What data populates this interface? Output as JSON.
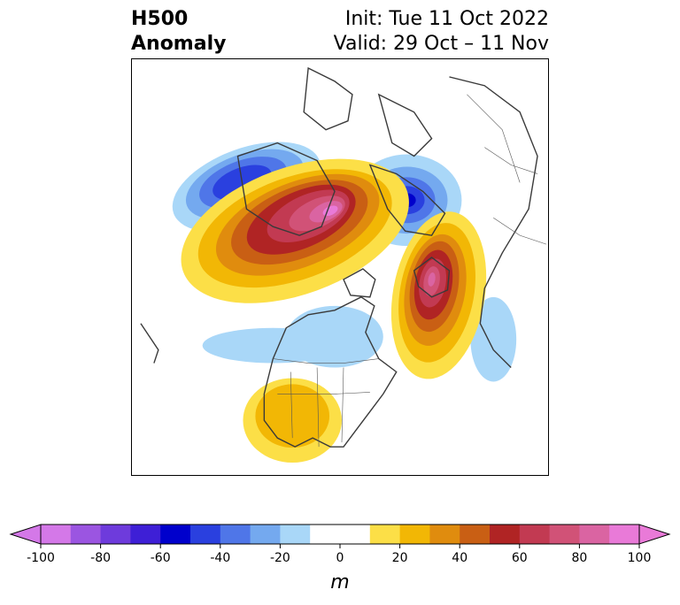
{
  "title": {
    "left_line1": "H500",
    "left_line2": "Anomaly",
    "right_line1": "Init: Tue 11 Oct 2022",
    "right_line2": "Valid: 29 Oct – 11 Nov"
  },
  "map": {
    "projection": "polar-stereographic (North America / Arctic)",
    "field": "500 hPa geopotential height anomaly",
    "features": [
      {
        "kind": "negative",
        "center": "northern Alaska / Beaufort Sea",
        "min": -60
      },
      {
        "kind": "positive",
        "center": "Canadian Arctic / Greenland Sea region",
        "max": 100
      },
      {
        "kind": "negative",
        "center": "northern Scandinavia / Barents Sea",
        "min": -70
      },
      {
        "kind": "positive",
        "center": "North Atlantic near UK / Iceland",
        "max": 90
      },
      {
        "kind": "negative",
        "center": "central Canada / Hudson Bay",
        "min": -20
      },
      {
        "kind": "positive",
        "center": "southwestern United States",
        "max": 30
      },
      {
        "kind": "negative",
        "center": "central North Atlantic west of Africa",
        "min": -20
      }
    ]
  },
  "colorbar": {
    "unit": "m",
    "extend": "both",
    "min": -100,
    "max": 100,
    "step": 10,
    "tick_labels": [
      "-100",
      "-80",
      "-60",
      "-40",
      "-20",
      "0",
      "20",
      "40",
      "60",
      "80",
      "100"
    ],
    "colors": [
      "#d478e8",
      "#9b55e1",
      "#6e3bdc",
      "#3e1fd6",
      "#0000cc",
      "#2a40df",
      "#4f76e8",
      "#74a9ef",
      "#a9d7f8",
      "#ffffff",
      "#ffffff",
      "#fcdf47",
      "#f2b705",
      "#e08c0e",
      "#c95f14",
      "#b02424",
      "#c23a52",
      "#d15277",
      "#da64a2",
      "#e97ad8"
    ],
    "under_color": "#d478e8",
    "over_color": "#e97ad8"
  }
}
